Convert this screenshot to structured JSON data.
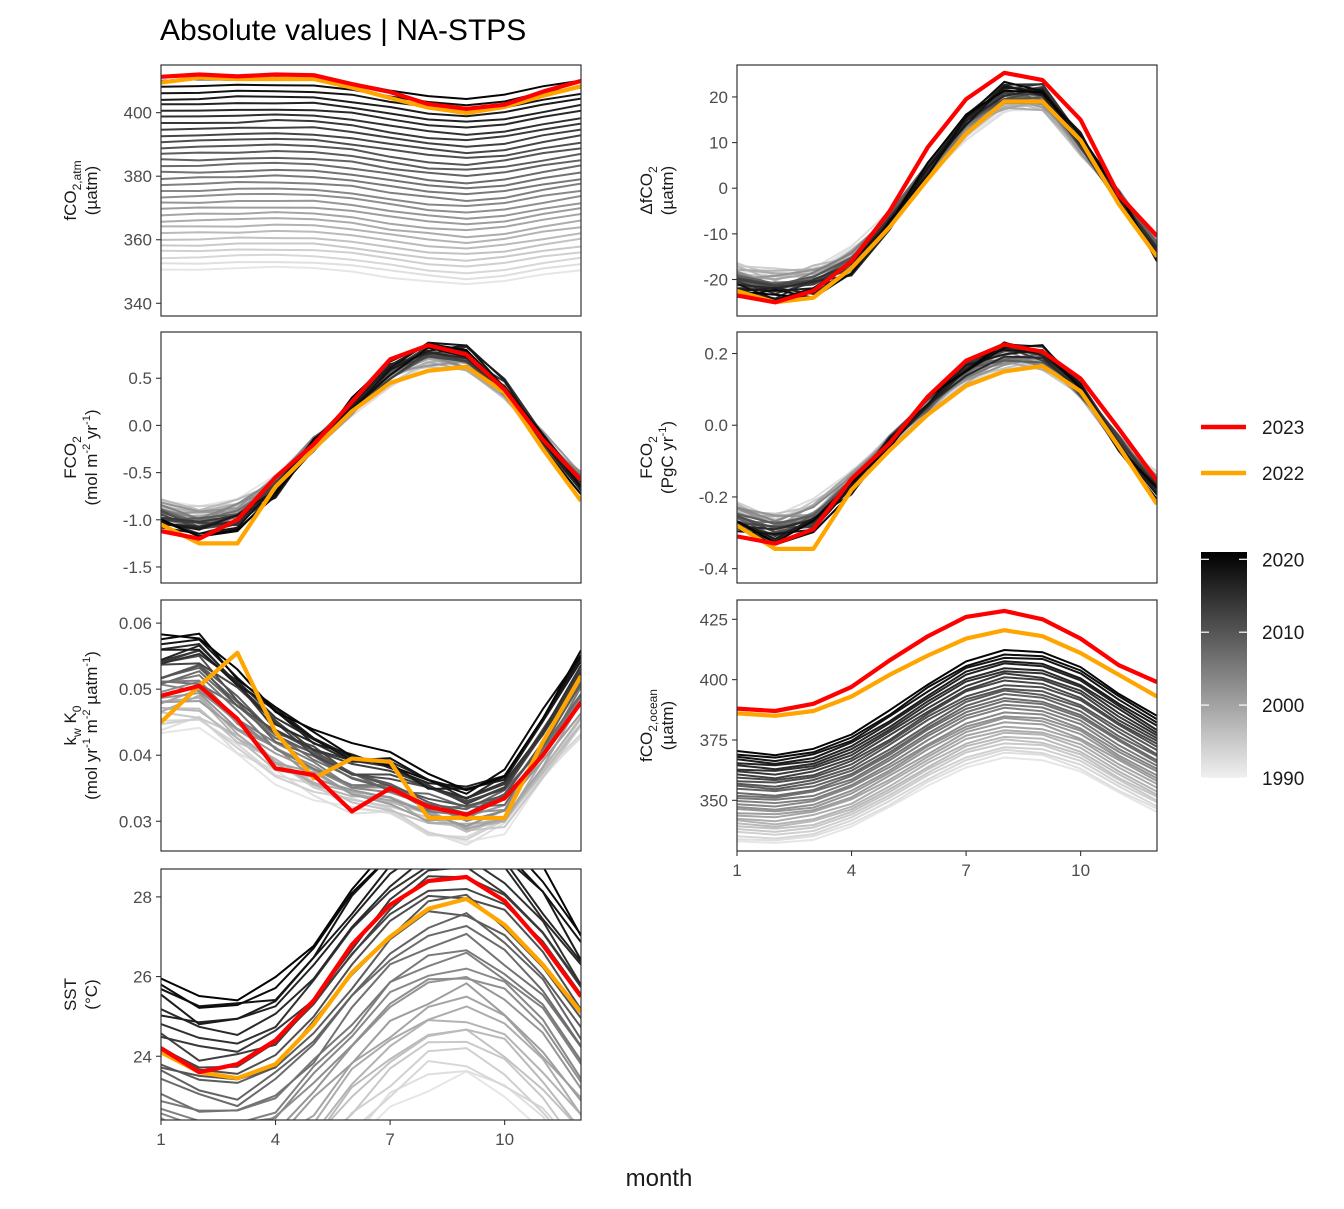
{
  "title": "Absolute values | NA-STPS",
  "xlabel": "month",
  "x_ticks": [
    1,
    4,
    7,
    10
  ],
  "legend": {
    "highlight": [
      {
        "label": "2023",
        "color": "#FF0000"
      },
      {
        "label": "2022",
        "color": "#FFA500"
      }
    ],
    "colorbar": {
      "ticks": [
        "2020",
        "2010",
        "2000",
        "1990"
      ],
      "range": [
        1990,
        2021
      ],
      "low_color": "#f0f0f0",
      "high_color": "#000000"
    }
  },
  "chart_data": [
    {
      "id": "fco2atm",
      "type": "line",
      "col": 0,
      "row": 0,
      "ylabel_lines": [
        [
          "fCO",
          {
            "sub": "2,atm"
          }
        ],
        [
          "(µatm)"
        ]
      ],
      "ylim": [
        336,
        415
      ],
      "yticks": [
        340,
        360,
        380,
        400
      ],
      "ytick_labels": [
        "340",
        "360",
        "380",
        "400"
      ],
      "base_curve": [
        0,
        0.2,
        0.5,
        0.7,
        0.5,
        -0.6,
        -2.3,
        -3.8,
        -4.6,
        -3.7,
        -1.6,
        0
      ],
      "year_range": [
        1990,
        2021
      ],
      "year_start": 350.5,
      "year_end": 410.0,
      "series": [
        {
          "name": "2023",
          "values": [
            411.3,
            412.0,
            411.4,
            412.0,
            411.8,
            409.0,
            406.5,
            402.7,
            401.2,
            402.5,
            406.6,
            410.0
          ]
        },
        {
          "name": "2022",
          "values": [
            409.5,
            411.0,
            410.6,
            410.6,
            410.6,
            407.9,
            404.6,
            401.6,
            399.9,
            401.8,
            405.3,
            408.3
          ]
        }
      ]
    },
    {
      "id": "dfco2",
      "type": "line",
      "col": 1,
      "row": 0,
      "ylabel_lines": [
        [
          "ΔfCO",
          {
            "sub": "2"
          }
        ],
        [
          "(µatm)"
        ]
      ],
      "ylim": [
        -28,
        27
      ],
      "yticks": [
        -20,
        -10,
        0,
        10,
        20
      ],
      "ytick_labels": [
        "-20",
        "-10",
        "0",
        "10",
        "20"
      ],
      "base_curve": [
        -20.5,
        -21.5,
        -20.5,
        -16.5,
        -7,
        4,
        14,
        20.5,
        20.5,
        10,
        -2,
        -13.5
      ],
      "year_range": [
        1990,
        2021
      ],
      "series": [
        {
          "name": "2023",
          "values": [
            -23.5,
            -25.0,
            -22.5,
            -16.0,
            -5.0,
            9.0,
            19.5,
            25.3,
            23.7,
            15.0,
            -1.5,
            -10.5
          ]
        },
        {
          "name": "2022",
          "values": [
            -22.5,
            -25.0,
            -24.0,
            -17.5,
            -8.5,
            2.0,
            12.0,
            19.0,
            19.0,
            10.5,
            -3.5,
            -15.0
          ]
        }
      ]
    },
    {
      "id": "fco2flux",
      "type": "line",
      "col": 0,
      "row": 1,
      "ylabel_lines": [
        [
          "FCO",
          {
            "sub": "2"
          }
        ],
        [
          "(mol m",
          {
            "sup": "-2"
          },
          " yr",
          {
            "sup": "-1"
          },
          ")"
        ]
      ],
      "ylim": [
        -1.67,
        0.99
      ],
      "yticks": [
        -1.5,
        -1.0,
        -0.5,
        0.0,
        0.5
      ],
      "ytick_labels": [
        "-1.5",
        "-1.0",
        "-0.5",
        "0.0",
        "0.5"
      ],
      "base_curve": [
        -0.95,
        -1.05,
        -0.95,
        -0.65,
        -0.2,
        0.2,
        0.55,
        0.75,
        0.72,
        0.4,
        -0.15,
        -0.6
      ],
      "year_range": [
        1990,
        2021
      ],
      "series": [
        {
          "name": "2023",
          "values": [
            -1.12,
            -1.2,
            -1.0,
            -0.55,
            -0.2,
            0.25,
            0.7,
            0.85,
            0.75,
            0.38,
            -0.15,
            -0.58
          ]
        },
        {
          "name": "2022",
          "values": [
            -1.05,
            -1.25,
            -1.25,
            -0.65,
            -0.25,
            0.15,
            0.45,
            0.58,
            0.62,
            0.35,
            -0.25,
            -0.8
          ]
        }
      ]
    },
    {
      "id": "fco2pg",
      "type": "line",
      "col": 1,
      "row": 1,
      "ylabel_lines": [
        [
          "FCO",
          {
            "sub": "2"
          }
        ],
        [
          "(PgC yr",
          {
            "sup": "-1"
          },
          ")"
        ]
      ],
      "ylim": [
        -0.44,
        0.26
      ],
      "yticks": [
        -0.4,
        -0.2,
        0.0,
        0.2
      ],
      "ytick_labels": [
        "-0.4",
        "-0.2",
        "0.0",
        "0.2"
      ],
      "base_curve": [
        -0.26,
        -0.29,
        -0.26,
        -0.16,
        -0.05,
        0.06,
        0.15,
        0.2,
        0.19,
        0.1,
        -0.05,
        -0.17
      ],
      "year_range": [
        1990,
        2021
      ],
      "series": [
        {
          "name": "2023",
          "values": [
            -0.31,
            -0.33,
            -0.29,
            -0.15,
            -0.05,
            0.08,
            0.18,
            0.225,
            0.205,
            0.13,
            -0.01,
            -0.155
          ]
        },
        {
          "name": "2022",
          "values": [
            -0.28,
            -0.345,
            -0.345,
            -0.18,
            -0.07,
            0.03,
            0.11,
            0.15,
            0.165,
            0.095,
            -0.06,
            -0.22
          ]
        }
      ]
    },
    {
      "id": "kwk0",
      "type": "line",
      "col": 0,
      "row": 2,
      "ylabel_lines": [
        [
          "k",
          {
            "sub": "w"
          },
          " K",
          {
            "sub": "0"
          }
        ],
        [
          "(mol yr",
          {
            "sup": "-1"
          },
          " m",
          {
            "sup": "-2"
          },
          " µatm",
          {
            "sup": "-1"
          },
          ")"
        ]
      ],
      "ylim": [
        0.0255,
        0.0635
      ],
      "yticks": [
        0.03,
        0.04,
        0.05,
        0.06
      ],
      "ytick_labels": [
        "0.03",
        "0.04",
        "0.05",
        "0.06"
      ],
      "base_curve": [
        0.052,
        0.053,
        0.048,
        0.043,
        0.04,
        0.037,
        0.036,
        0.0335,
        0.032,
        0.034,
        0.042,
        0.051
      ],
      "year_range": [
        1990,
        2021
      ],
      "series": [
        {
          "name": "2023",
          "values": [
            0.049,
            0.0505,
            0.0455,
            0.038,
            0.037,
            0.0315,
            0.035,
            0.0322,
            0.031,
            0.0335,
            0.04,
            0.048
          ]
        },
        {
          "name": "2022",
          "values": [
            0.045,
            0.0505,
            0.0555,
            0.0435,
            0.0365,
            0.0395,
            0.039,
            0.0305,
            0.0305,
            0.0305,
            0.042,
            0.052
          ]
        }
      ]
    },
    {
      "id": "fco2ocean",
      "type": "line",
      "col": 1,
      "row": 2,
      "ylabel_lines": [
        [
          "fCO",
          {
            "sub": "2,ocean"
          }
        ],
        [
          "(µatm)"
        ]
      ],
      "ylim": [
        329,
        433
      ],
      "yticks": [
        350,
        375,
        400,
        425
      ],
      "ytick_labels": [
        "350",
        "375",
        "400",
        "425"
      ],
      "base_curve": [
        -14,
        -15,
        -13,
        -8,
        0,
        9,
        17,
        21,
        20,
        15,
        6,
        -2
      ],
      "year_range": [
        1990,
        2021
      ],
      "year_start": 347.0,
      "year_end": 387.0,
      "series": [
        {
          "name": "2023",
          "values": [
            388,
            387,
            390,
            397,
            408,
            418,
            426,
            428.5,
            425,
            417,
            406,
            399
          ]
        },
        {
          "name": "2022",
          "values": [
            386,
            385,
            387,
            393,
            402,
            410,
            417,
            420.5,
            418,
            411,
            402,
            393
          ]
        }
      ]
    },
    {
      "id": "sst",
      "type": "line",
      "col": 0,
      "row": 3,
      "ylabel_lines": [
        [
          "SST"
        ],
        [
          "(°C)"
        ]
      ],
      "ylim": [
        22.4,
        28.7
      ],
      "yticks": [
        24,
        26,
        28
      ],
      "ytick_labels": [
        "24",
        "26",
        "28"
      ],
      "base_curve": [
        23.6,
        23.2,
        23.2,
        23.6,
        24.5,
        25.7,
        26.7,
        27.4,
        27.6,
        27.0,
        26.0,
        24.7
      ],
      "year_range": [
        1990,
        2021
      ],
      "series": [
        {
          "name": "2023",
          "values": [
            24.2,
            23.6,
            23.8,
            24.4,
            25.4,
            26.8,
            27.8,
            28.4,
            28.5,
            27.9,
            26.8,
            25.5
          ]
        },
        {
          "name": "2022",
          "values": [
            24.1,
            23.6,
            23.45,
            23.8,
            24.8,
            26.1,
            27.0,
            27.7,
            27.95,
            27.3,
            26.3,
            25.1
          ]
        }
      ]
    }
  ]
}
